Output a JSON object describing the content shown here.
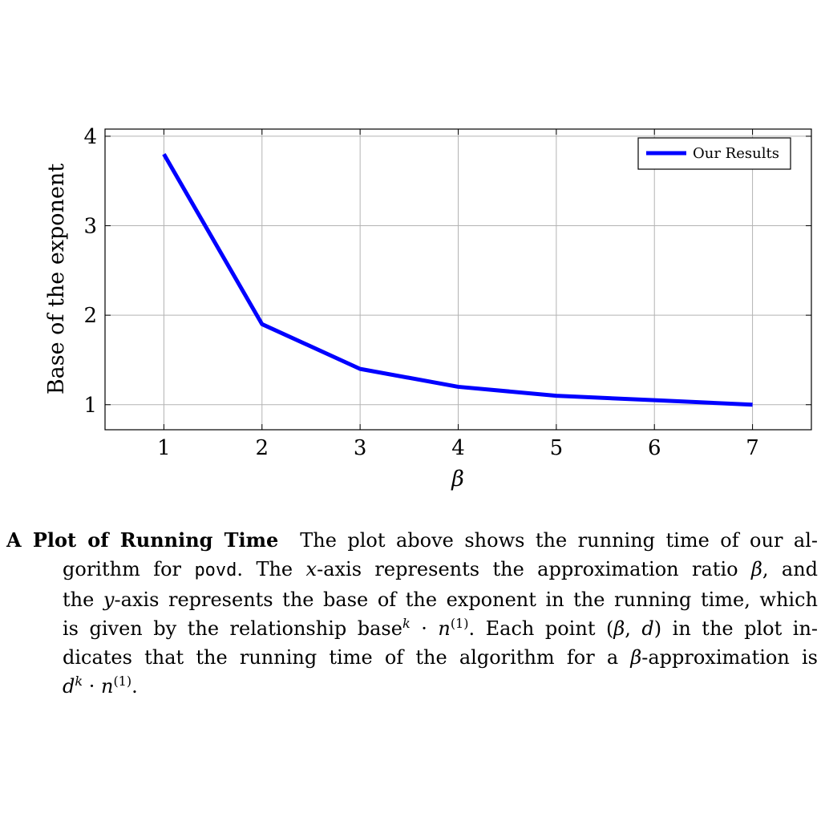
{
  "chart_data": {
    "type": "line",
    "title": "",
    "xlabel": "β",
    "ylabel": "Base of the exponent",
    "x": [
      1,
      2,
      3,
      4,
      5,
      6,
      7
    ],
    "series": [
      {
        "name": "Our Results",
        "values": [
          3.8,
          1.9,
          1.4,
          1.2,
          1.1,
          1.05,
          1.0
        ],
        "color": "#0000ff"
      }
    ],
    "xticks": [
      "1",
      "2",
      "3",
      "4",
      "5",
      "6",
      "7"
    ],
    "yticks": [
      "1",
      "2",
      "3",
      "4"
    ],
    "xlim": [
      0.4,
      7.6
    ],
    "ylim": [
      0.72,
      4.08
    ],
    "grid": true,
    "legend_position": "top-right"
  },
  "caption": {
    "heading": "A Plot of Running Time",
    "l1_a": "The plot above shows the running time of our al-",
    "l2_a": "gorithm for",
    "l2_code": "povd",
    "l2_b": ". The",
    "l2_x": "x",
    "l2_c": "-axis represents the approximation ratio",
    "l2_beta": "β",
    "l2_d": ", and",
    "l3_a": "the",
    "l3_y": "y",
    "l3_b": "-axis represents the base of the exponent in the running time, which",
    "l4_a": "is given by the relationship base",
    "l4_k": "k",
    "l4_b": " · ",
    "l4_n": "n",
    "l4_sup": "(1)",
    "l4_c": ". Each point (",
    "l4_beta": "β",
    "l4_d": ", ",
    "l4_dvar": "d",
    "l4_e": ") in the plot in-",
    "l5_a": "dicates that the running time of the algorithm for a",
    "l5_beta": "β",
    "l5_b": "-approximation is",
    "l6_d": "d",
    "l6_k": "k",
    "l6_b": " · ",
    "l6_n": "n",
    "l6_sup": "(1)",
    "l6_end": "."
  }
}
